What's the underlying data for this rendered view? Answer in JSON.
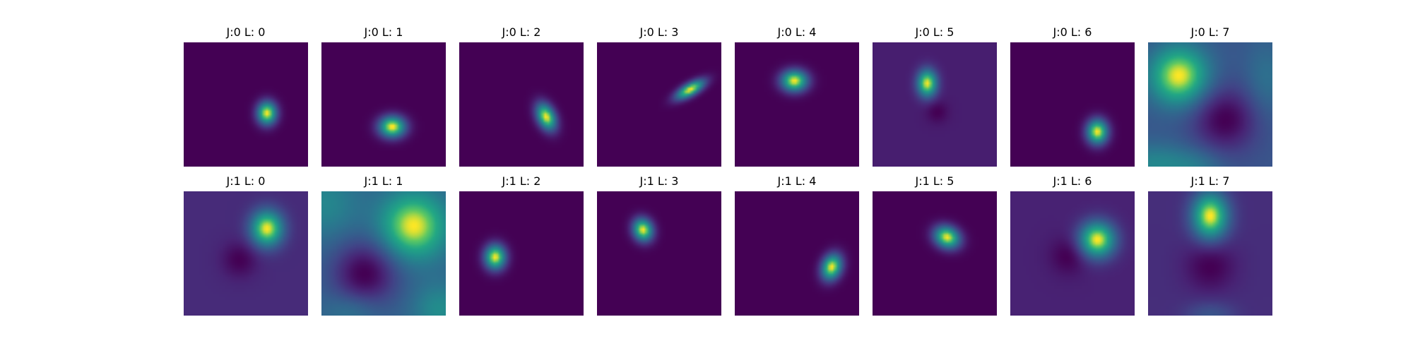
{
  "chart_data": {
    "type": "heatmap",
    "colormap": "viridis",
    "grid": false,
    "rows": 2,
    "cols": 8,
    "panels": [
      {
        "title": "J:0 L: 0",
        "blobs": [
          {
            "cx": 0.67,
            "cy": 0.57,
            "sx": 0.055,
            "sy": 0.065,
            "angle": 0,
            "amp": 1.0
          }
        ]
      },
      {
        "title": "J:0 L: 1",
        "blobs": [
          {
            "cx": 0.57,
            "cy": 0.68,
            "sx": 0.075,
            "sy": 0.06,
            "angle": 0,
            "amp": 1.0
          }
        ]
      },
      {
        "title": "J:0 L: 2",
        "blobs": [
          {
            "cx": 0.7,
            "cy": 0.6,
            "sx": 0.05,
            "sy": 0.08,
            "angle": -25,
            "amp": 1.0
          }
        ]
      },
      {
        "title": "J:0 L: 3",
        "blobs": [
          {
            "cx": 0.75,
            "cy": 0.38,
            "sx": 0.09,
            "sy": 0.035,
            "angle": -30,
            "amp": 1.0
          }
        ]
      },
      {
        "title": "J:0 L: 4",
        "blobs": [
          {
            "cx": 0.48,
            "cy": 0.31,
            "sx": 0.075,
            "sy": 0.06,
            "angle": 0,
            "amp": 1.0
          }
        ]
      },
      {
        "title": "J:0 L: 5",
        "blobs": [
          {
            "cx": 0.44,
            "cy": 0.33,
            "sx": 0.055,
            "sy": 0.075,
            "angle": 0,
            "amp": 1.0
          },
          {
            "cx": 0.52,
            "cy": 0.56,
            "sx": 0.06,
            "sy": 0.06,
            "angle": 0,
            "amp": -0.12
          }
        ]
      },
      {
        "title": "J:0 L: 6",
        "blobs": [
          {
            "cx": 0.7,
            "cy": 0.72,
            "sx": 0.06,
            "sy": 0.07,
            "angle": 0,
            "amp": 1.0
          }
        ]
      },
      {
        "title": "J:0 L: 7",
        "blobs": [
          {
            "cx": 0.25,
            "cy": 0.27,
            "sx": 0.16,
            "sy": 0.16,
            "angle": 0,
            "amp": 1.0
          },
          {
            "cx": 0.62,
            "cy": 0.62,
            "sx": 0.18,
            "sy": 0.18,
            "angle": 0,
            "amp": -0.5
          },
          {
            "cx": 0.05,
            "cy": 0.98,
            "sx": 0.22,
            "sy": 0.12,
            "angle": 0,
            "amp": 0.35
          },
          {
            "cx": 0.95,
            "cy": 0.3,
            "sx": 0.12,
            "sy": 0.22,
            "angle": 0,
            "amp": 0.2
          },
          {
            "cx": 0.4,
            "cy": 1.0,
            "sx": 0.15,
            "sy": 0.1,
            "angle": 0,
            "amp": 0.2
          }
        ]
      },
      {
        "title": "J:1 L: 0",
        "blobs": [
          {
            "cx": 0.67,
            "cy": 0.3,
            "sx": 0.09,
            "sy": 0.1,
            "angle": 0,
            "amp": 1.0
          },
          {
            "cx": 0.45,
            "cy": 0.55,
            "sx": 0.1,
            "sy": 0.1,
            "angle": 0,
            "amp": -0.18
          }
        ]
      },
      {
        "title": "J:1 L: 1",
        "blobs": [
          {
            "cx": 0.74,
            "cy": 0.28,
            "sx": 0.18,
            "sy": 0.18,
            "angle": 0,
            "amp": 1.0
          },
          {
            "cx": 0.35,
            "cy": 0.66,
            "sx": 0.18,
            "sy": 0.18,
            "angle": 0,
            "amp": -0.65
          },
          {
            "cx": 0.02,
            "cy": 0.1,
            "sx": 0.2,
            "sy": 0.2,
            "angle": 0,
            "amp": 0.3
          },
          {
            "cx": 0.95,
            "cy": 0.95,
            "sx": 0.15,
            "sy": 0.15,
            "angle": 0,
            "amp": 0.35
          },
          {
            "cx": 0.25,
            "cy": 0.95,
            "sx": 0.15,
            "sy": 0.1,
            "angle": 0,
            "amp": 0.2
          }
        ]
      },
      {
        "title": "J:1 L: 2",
        "blobs": [
          {
            "cx": 0.29,
            "cy": 0.53,
            "sx": 0.06,
            "sy": 0.07,
            "angle": 0,
            "amp": 1.0
          }
        ]
      },
      {
        "title": "J:1 L: 3",
        "blobs": [
          {
            "cx": 0.37,
            "cy": 0.31,
            "sx": 0.055,
            "sy": 0.065,
            "angle": -20,
            "amp": 1.0
          }
        ]
      },
      {
        "title": "J:1 L: 4",
        "blobs": [
          {
            "cx": 0.78,
            "cy": 0.61,
            "sx": 0.055,
            "sy": 0.075,
            "angle": 20,
            "amp": 1.0
          }
        ]
      },
      {
        "title": "J:1 L: 5",
        "blobs": [
          {
            "cx": 0.6,
            "cy": 0.37,
            "sx": 0.075,
            "sy": 0.06,
            "angle": 25,
            "amp": 1.0
          }
        ]
      },
      {
        "title": "J:1 L: 6",
        "blobs": [
          {
            "cx": 0.7,
            "cy": 0.39,
            "sx": 0.1,
            "sy": 0.1,
            "angle": 0,
            "amp": 1.0
          },
          {
            "cx": 0.47,
            "cy": 0.52,
            "sx": 0.1,
            "sy": 0.1,
            "angle": 0,
            "amp": -0.15
          }
        ]
      },
      {
        "title": "J:1 L: 7",
        "blobs": [
          {
            "cx": 0.5,
            "cy": 0.2,
            "sx": 0.1,
            "sy": 0.13,
            "angle": 0,
            "amp": 1.0
          },
          {
            "cx": 0.5,
            "cy": 0.6,
            "sx": 0.14,
            "sy": 0.14,
            "angle": 0,
            "amp": -0.2
          },
          {
            "cx": 0.5,
            "cy": 1.0,
            "sx": 0.14,
            "sy": 0.08,
            "angle": 0,
            "amp": 0.2
          }
        ]
      }
    ]
  }
}
